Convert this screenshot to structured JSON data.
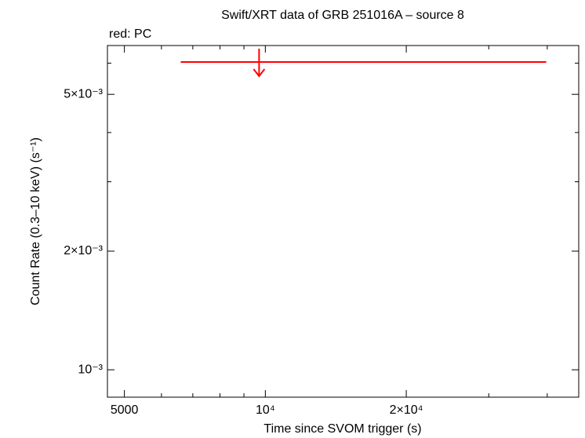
{
  "chart_data": {
    "type": "scatter",
    "title": "Swift/XRT data of GRB 251016A – source 8",
    "annotation": "red: PC",
    "xlabel": "Time since SVOM trigger (s)",
    "ylabel": "Count Rate (0.3–10 keV) (s⁻¹)",
    "xscale": "log",
    "yscale": "log",
    "xlim": [
      4600,
      46700
    ],
    "ylim": [
      0.000852,
      0.00665
    ],
    "xticks": [
      5000,
      {
        "value": 10000,
        "label": "10⁴"
      },
      {
        "value": 20000,
        "label": "2×10⁴"
      }
    ],
    "xminorticks": [
      6000,
      7000,
      8000,
      9000,
      30000,
      40000
    ],
    "yticks": [
      {
        "value": 0.001,
        "label": "10⁻³"
      },
      {
        "value": 0.002,
        "label": "2×10⁻³"
      },
      {
        "value": 0.005,
        "label": "5×10⁻³"
      }
    ],
    "yminorticks": [
      0.003,
      0.004,
      0.006
    ],
    "series": [
      {
        "name": "PC",
        "color": "#ff0000",
        "upper_limit": true,
        "x": [
          9697
        ],
        "x_low": [
          6597
        ],
        "x_high": [
          39800
        ],
        "values": [
          0.00604
        ]
      }
    ]
  }
}
